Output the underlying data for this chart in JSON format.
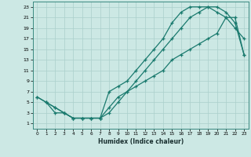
{
  "title": "",
  "xlabel": "Humidex (Indice chaleur)",
  "bg_color": "#cce8e4",
  "line_color": "#1a7a6e",
  "grid_color": "#aacfcb",
  "xlim": [
    -0.5,
    23.5
  ],
  "ylim": [
    0.0,
    24.0
  ],
  "xticks": [
    0,
    1,
    2,
    3,
    4,
    5,
    6,
    7,
    8,
    9,
    10,
    11,
    12,
    13,
    14,
    15,
    16,
    17,
    18,
    19,
    20,
    21,
    22,
    23
  ],
  "yticks": [
    1,
    3,
    5,
    7,
    9,
    11,
    13,
    15,
    17,
    19,
    21,
    23
  ],
  "line1_x": [
    0,
    1,
    2,
    3,
    4,
    5,
    6,
    7,
    8,
    9,
    10,
    11,
    12,
    13,
    14,
    15,
    16,
    17,
    18,
    19,
    20,
    21,
    22,
    23
  ],
  "line1_y": [
    6,
    5,
    4,
    3,
    2,
    2,
    2,
    2,
    7,
    8,
    9,
    11,
    13,
    15,
    17,
    20,
    22,
    23,
    23,
    23,
    22,
    21,
    19,
    17
  ],
  "line2_x": [
    1,
    2,
    3,
    4,
    5,
    6,
    7,
    8,
    9,
    10,
    11,
    12,
    13,
    14,
    15,
    16,
    17,
    18,
    19,
    20,
    21,
    22,
    23
  ],
  "line2_y": [
    5,
    3,
    3,
    2,
    2,
    2,
    2,
    4,
    6,
    7,
    8,
    9,
    10,
    11,
    13,
    14,
    15,
    16,
    17,
    18,
    21,
    21,
    14
  ],
  "line3_x": [
    0,
    1,
    2,
    3,
    4,
    5,
    6,
    7,
    8,
    9,
    10,
    11,
    12,
    13,
    14,
    15,
    16,
    17,
    18,
    19,
    20,
    21,
    22,
    23
  ],
  "line3_y": [
    6,
    5,
    4,
    3,
    2,
    2,
    2,
    2,
    3,
    5,
    7,
    9,
    11,
    13,
    15,
    17,
    19,
    21,
    22,
    23,
    23,
    22,
    20,
    14
  ]
}
